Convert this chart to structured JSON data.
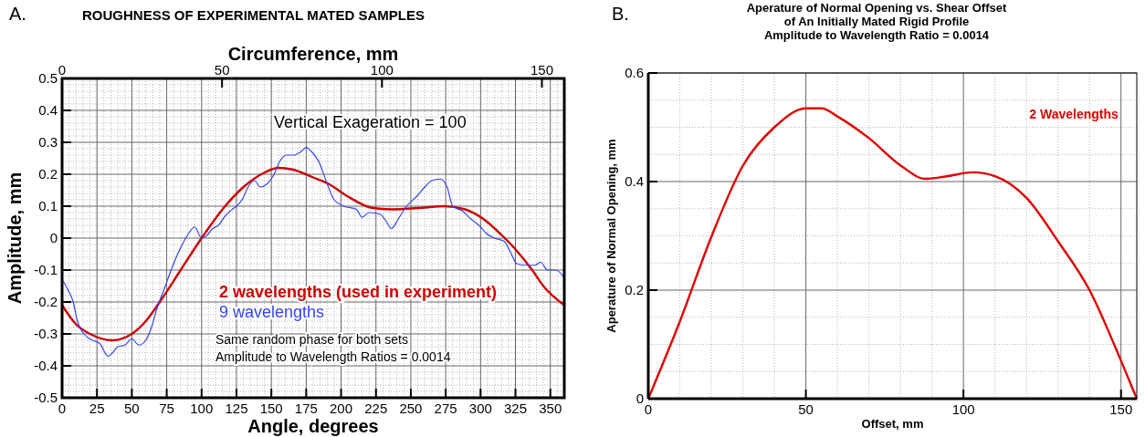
{
  "chart_data": [
    {
      "type": "line",
      "title": "ROUGHNESS OF EXPERIMENTAL MATED SAMPLES",
      "xlabel": "Angle, degrees",
      "x2label": "Circumference, mm",
      "ylabel": "Amplitude, mm",
      "xlim": [
        0,
        360
      ],
      "xticks": [
        0,
        25,
        50,
        75,
        100,
        125,
        150,
        175,
        200,
        225,
        250,
        275,
        300,
        325,
        350
      ],
      "x2lim": [
        0,
        157
      ],
      "x2ticks": [
        0,
        50,
        100,
        150
      ],
      "ylim": [
        -0.5,
        0.5
      ],
      "yticks": [
        -0.5,
        -0.4,
        -0.3,
        -0.2,
        -0.1,
        0,
        0.1,
        0.2,
        0.3,
        0.4,
        0.5
      ],
      "grid": true,
      "legend": "bottom",
      "annotations": [
        "A.",
        "Vertical Exageration = 100",
        "Same random phase for both sets",
        "Amplitude to Wavelength Ratios = 0.0014"
      ],
      "series": [
        {
          "name": "2 wavelengths (used in experiment)",
          "color": "#cc0000",
          "x": [
            0,
            10,
            20,
            36,
            50,
            60,
            70,
            85,
            100,
            115,
            130,
            145,
            155,
            165,
            180,
            191,
            205,
            222,
            236,
            258,
            274,
            289,
            302,
            315,
            324,
            337,
            345,
            360
          ],
          "values": [
            -0.21,
            -0.27,
            -0.3,
            -0.32,
            -0.3,
            -0.26,
            -0.2,
            -0.1,
            0,
            0.09,
            0.16,
            0.205,
            0.22,
            0.215,
            0.19,
            0.17,
            0.13,
            0.095,
            0.09,
            0.095,
            0.1,
            0.09,
            0.06,
            0.01,
            -0.03,
            -0.1,
            -0.15,
            -0.21
          ]
        },
        {
          "name": "9 wavelengths",
          "color": "#3344ee",
          "x": [
            0,
            4,
            8,
            11,
            14,
            18,
            22,
            27,
            33,
            36,
            40,
            45,
            50,
            55,
            60,
            64,
            68,
            74,
            79,
            85,
            90,
            95,
            100,
            103,
            108,
            112,
            117,
            122,
            125,
            129,
            134,
            138,
            142,
            147,
            152,
            156,
            161,
            166,
            171,
            175,
            179,
            184,
            190,
            195,
            202,
            211,
            215,
            220,
            228,
            232,
            236,
            241,
            247,
            254,
            260,
            265,
            271,
            276,
            280,
            287,
            293,
            300,
            304,
            310,
            317,
            321,
            326,
            332,
            339,
            343,
            348,
            354,
            360
          ],
          "values": [
            -0.13,
            -0.16,
            -0.2,
            -0.26,
            -0.29,
            -0.31,
            -0.32,
            -0.33,
            -0.37,
            -0.36,
            -0.34,
            -0.335,
            -0.315,
            -0.335,
            -0.32,
            -0.28,
            -0.22,
            -0.15,
            -0.09,
            -0.03,
            0.01,
            0.035,
            0,
            0.005,
            0.03,
            0.04,
            0.07,
            0.09,
            0.1,
            0.12,
            0.165,
            0.18,
            0.16,
            0.17,
            0.2,
            0.24,
            0.26,
            0.26,
            0.27,
            0.284,
            0.27,
            0.24,
            0.17,
            0.12,
            0.1,
            0.09,
            0.065,
            0.08,
            0.075,
            0.055,
            0.03,
            0.06,
            0.1,
            0.13,
            0.16,
            0.18,
            0.185,
            0.16,
            0.1,
            0.085,
            0.06,
            0.035,
            0.015,
            0,
            -0.01,
            -0.04,
            -0.08,
            -0.085,
            -0.085,
            -0.075,
            -0.1,
            -0.1,
            -0.125
          ]
        }
      ]
    },
    {
      "type": "line",
      "title": "Aperature of Normal Opening vs. Shear Offset\nof An Initially Mated Rigid Profile\nAmplitude to Wavelength Ratio = 0.0014",
      "xlabel": "Offset, mm",
      "ylabel": "Aperature of Normal Opening, mm",
      "xlim": [
        0,
        155
      ],
      "xticks": [
        0,
        50,
        100,
        150
      ],
      "ylim": [
        0,
        0.6
      ],
      "yticks": [
        0,
        0.2,
        0.4,
        0.6
      ],
      "grid": true,
      "annotations": [
        "B."
      ],
      "series": [
        {
          "name": "2 Wavelengths",
          "color": "#dd0000",
          "x": [
            0,
            10,
            20,
            30,
            40,
            50,
            55,
            60,
            70,
            80,
            88,
            95,
            103,
            110,
            120,
            130,
            140,
            150,
            155
          ],
          "values": [
            0,
            0.142,
            0.298,
            0.429,
            0.5,
            0.535,
            0.535,
            0.52,
            0.48,
            0.43,
            0.405,
            0.41,
            0.417,
            0.41,
            0.37,
            0.29,
            0.2,
            0.07,
            0
          ]
        }
      ]
    }
  ]
}
